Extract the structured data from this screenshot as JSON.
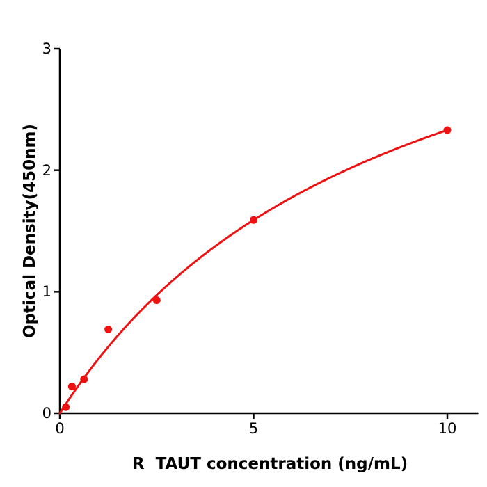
{
  "figure": {
    "background": "#ffffff"
  },
  "chart_data": {
    "type": "scatter",
    "title": "",
    "xlabel": "R  TAUT concentration (ng/mL)",
    "ylabel": "Optical Density(450nm)",
    "points": [
      {
        "x": 0.156,
        "y": 0.05
      },
      {
        "x": 0.313,
        "y": 0.22
      },
      {
        "x": 0.625,
        "y": 0.28
      },
      {
        "x": 1.25,
        "y": 0.69
      },
      {
        "x": 2.5,
        "y": 0.93
      },
      {
        "x": 5,
        "y": 1.59
      },
      {
        "x": 10,
        "y": 2.33
      }
    ],
    "fit_curve": {
      "model": "michaelis_menten",
      "vmax": 4.36,
      "km": 8.71,
      "x_start": 0,
      "x_end": 10
    },
    "xlim": [
      0,
      10.8
    ],
    "ylim": [
      0,
      3
    ],
    "xticks": [
      "0",
      "5",
      "10"
    ],
    "xtick_values": [
      0,
      5,
      10
    ],
    "yticks": [
      "0",
      "1",
      "2",
      "3"
    ],
    "ytick_values": [
      0,
      1,
      2,
      3
    ],
    "grid": false,
    "legend_position": "none",
    "marker": {
      "shape": "circle",
      "radius_px": 5.5
    },
    "colors": {
      "curve": "#ee1111",
      "marker": "#ee1111",
      "axis": "#000000",
      "text": "#000000"
    }
  }
}
